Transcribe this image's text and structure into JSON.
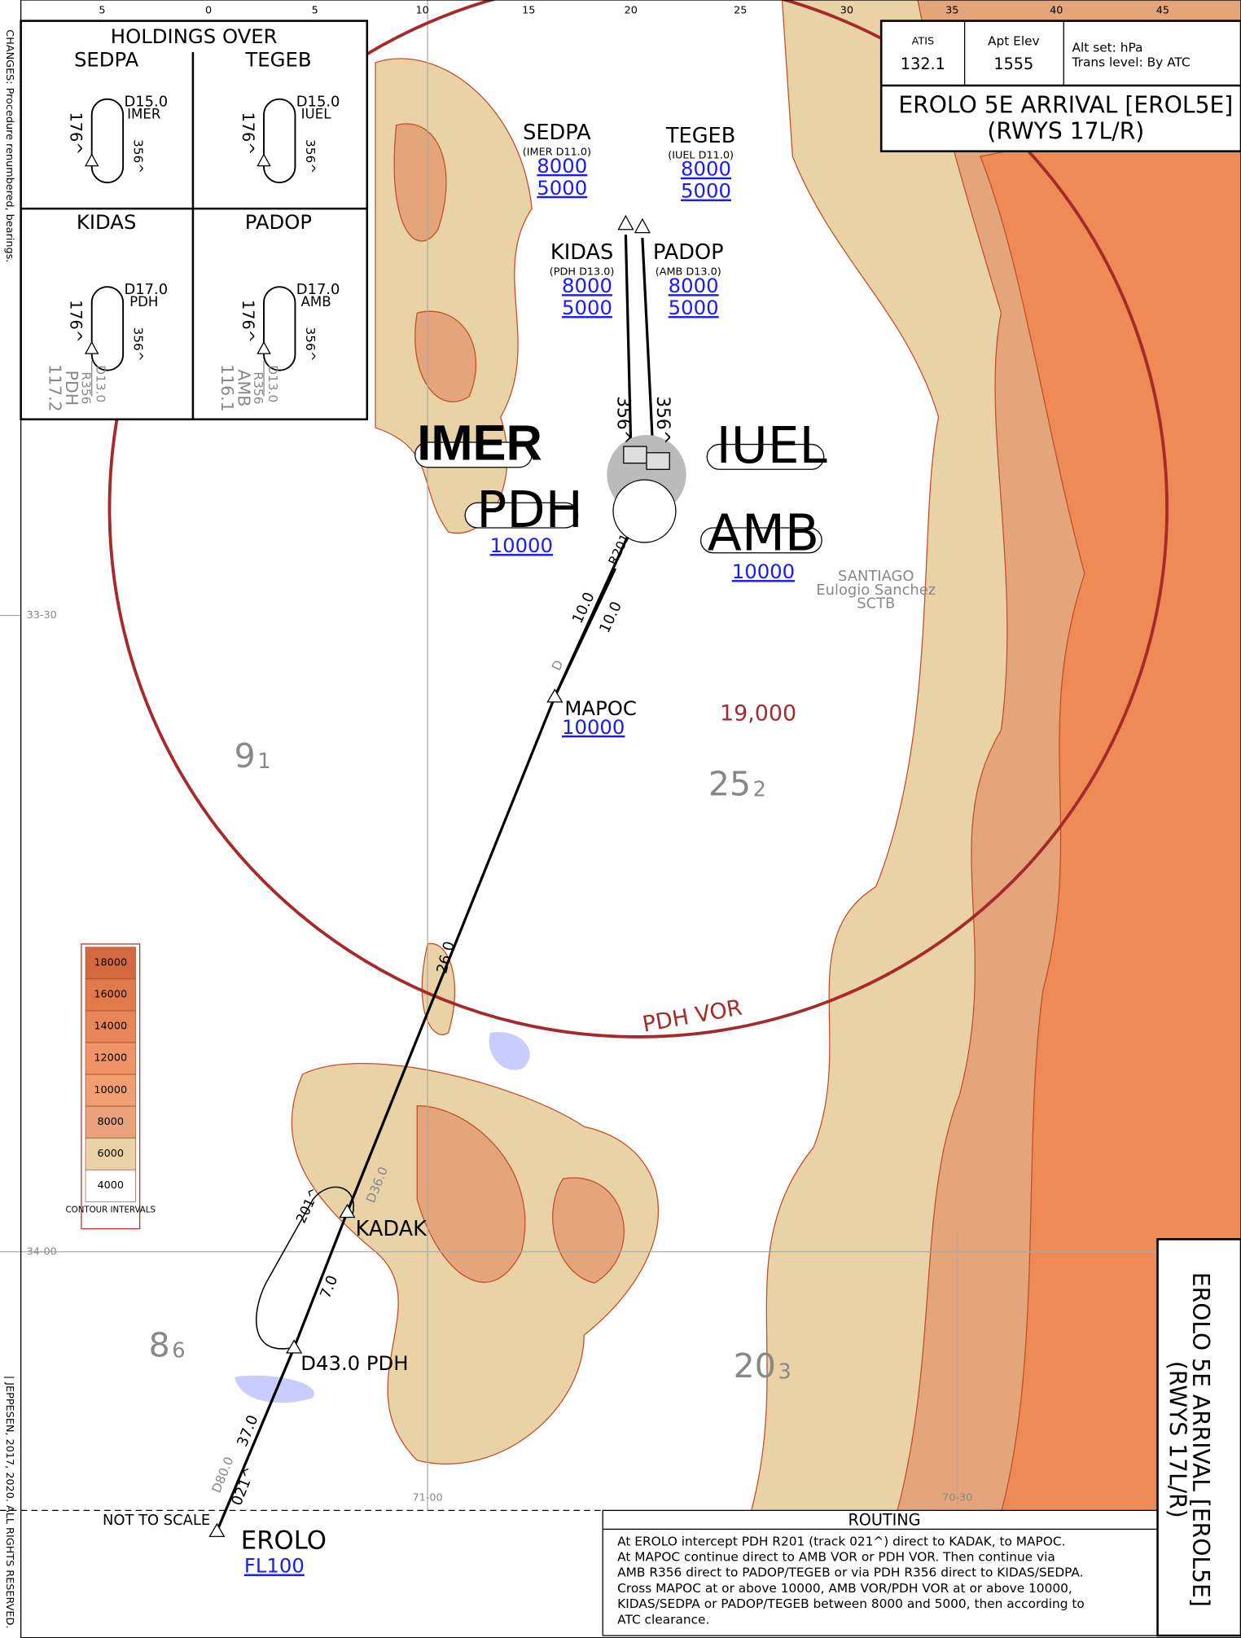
{
  "header": {
    "atis_label": "ATIS",
    "atis": "132.1",
    "elev_label": "Apt Elev",
    "elev": "1555",
    "alt_set": "Alt set: hPa",
    "trans_level": "Trans level: By ATC",
    "title": "EROLO 5E ARRIVAL [EROL5E]",
    "subtitle": "(RWYS 17L/R)"
  },
  "side_note": "CHANGES: Procedure renumbered, bearings.",
  "copyright": "| JEPPESEN, 2017, 2020. ALL RIGHTS RESERVED.",
  "top_scale": [
    "5",
    "0",
    "5",
    "10",
    "15",
    "20",
    "25",
    "30",
    "35",
    "40",
    "45"
  ],
  "lat_labels": [
    "33-30",
    "34-00"
  ],
  "lon_labels": [
    "71-00",
    "70-30"
  ],
  "holdings": {
    "title": "HOLDINGS OVER",
    "panels": [
      {
        "name": "SEDPA",
        "fix": "D15.0",
        "ref": "IMER",
        "inbound": "176^",
        "outbound": "356^"
      },
      {
        "name": "TEGEB",
        "fix": "D15.0",
        "ref": "IUEL",
        "inbound": "176^",
        "outbound": "356^"
      },
      {
        "name": "KIDAS",
        "fix": "D17.0",
        "ref": "PDH",
        "inbound": "176^",
        "outbound": "356^",
        "dist": "D13.0",
        "radial": "R356",
        "navaid": "PDH",
        "freq": "117.2"
      },
      {
        "name": "PADOP",
        "fix": "D17.0",
        "ref": "AMB",
        "inbound": "176^",
        "outbound": "356^",
        "dist": "D13.0",
        "radial": "R356",
        "navaid": "AMB",
        "freq": "116.1"
      }
    ]
  },
  "fixes": [
    {
      "name": "SEDPA",
      "ref": "(IMER D11.0)",
      "alt_top": "8000",
      "alt_bottom": "5000"
    },
    {
      "name": "TEGEB",
      "ref": "(IUEL D11.0)",
      "alt_top": "8000",
      "alt_bottom": "5000"
    },
    {
      "name": "KIDAS",
      "ref": "(PDH D13.0)",
      "alt_top": "8000",
      "alt_bottom": "5000"
    },
    {
      "name": "PADOP",
      "ref": "(AMB D13.0)",
      "alt_top": "8000",
      "alt_bottom": "5000"
    }
  ],
  "navaids": {
    "imer": "IMER",
    "iuel": "IUEL",
    "pdh": "PDH",
    "pdh_alt": "10000",
    "amb": "AMB",
    "amb_alt": "10000"
  },
  "points": {
    "mapoc": "MAPOC",
    "mapoc_alt": "10000",
    "kadak": "KADAK",
    "d43": "D43.0 PDH",
    "erolo": "EROLO",
    "erolo_alt": "FL100"
  },
  "legs": {
    "track_1": "356^",
    "track_2": "356^",
    "r201": "R201",
    "dist_1": "10.0",
    "dist_2": "10.0",
    "d": "D",
    "dist_3": "26.0",
    "d36": "D36.0",
    "hold_track": "201^",
    "dist_4": "7.0",
    "dist_5": "37.0",
    "d80": "D80.0",
    "track_021": "021^"
  },
  "mora": [
    [
      "9",
      "1"
    ],
    [
      "25",
      "2"
    ],
    [
      "8",
      "6"
    ],
    [
      "20",
      "3"
    ]
  ],
  "airport": [
    "SANTIAGO",
    "Eulogio Sanchez",
    "SCTB"
  ],
  "msa": "19,000",
  "vor_ring": "PDH VOR",
  "not_to_scale": "NOT TO SCALE",
  "legend": {
    "title": "CONTOUR INTERVALS",
    "intervals": [
      18000,
      16000,
      14000,
      12000,
      10000,
      8000,
      6000,
      4000
    ],
    "colors": [
      "#d4693f",
      "#e07a4b",
      "#e8865a",
      "#ee9466",
      "#f0a070",
      "#e9a27a",
      "#e9d3a6",
      "#ffffff"
    ]
  },
  "routing": {
    "title": "ROUTING",
    "lines": [
      "At EROLO intercept PDH R201 (track 021^) direct to KADAK, to MAPOC.",
      "At MAPOC continue direct to AMB VOR or PDH VOR. Then continue via",
      "AMB R356 direct to PADOP/TEGEB or via PDH R356 direct to KIDAS/SEDPA.",
      "Cross MAPOC at or above 10000, AMB VOR/PDH VOR at or above 10000,",
      "KIDAS/SEDPA or PADOP/TEGEB between 8000 and 5000, then according to",
      "ATC clearance."
    ]
  }
}
